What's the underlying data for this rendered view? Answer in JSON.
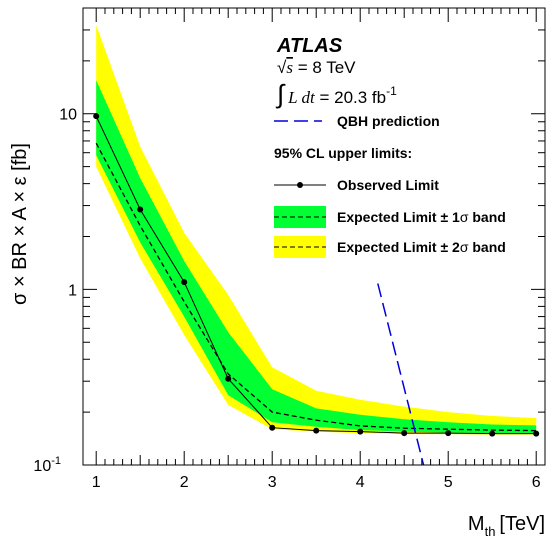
{
  "chart_data": {
    "type": "line",
    "title": "",
    "xlabel": "M",
    "xlabel_sub": "th",
    "xlabel_unit": "[TeV]",
    "ylabel": "σ × BR × A × ε  [fb]",
    "xlim": [
      0.85,
      6.1
    ],
    "ylim": [
      0.1,
      40
    ],
    "yscale": "log",
    "xticks": [
      1,
      2,
      3,
      4,
      5,
      6
    ],
    "yticks": [
      {
        "value": 0.1,
        "label": "10",
        "sup": "-1"
      },
      {
        "value": 1,
        "label": "1",
        "sup": ""
      },
      {
        "value": 10,
        "label": "10",
        "sup": ""
      }
    ],
    "x": [
      1.0,
      1.5,
      2.0,
      2.5,
      3.0,
      3.5,
      4.0,
      4.5,
      5.0,
      5.5,
      6.0
    ],
    "series": [
      {
        "name": "Observed Limit",
        "style": "solid-marker",
        "color": "#000000",
        "values": [
          9.7,
          2.85,
          1.1,
          0.31,
          0.163,
          0.157,
          0.155,
          0.152,
          0.152,
          0.151,
          0.151
        ]
      },
      {
        "name": "Expected Limit ± 1σ band",
        "style": "dashed",
        "color": "#000000",
        "values": [
          6.8,
          2.3,
          0.85,
          0.33,
          0.2,
          0.18,
          0.167,
          0.162,
          0.16,
          0.158,
          0.157
        ],
        "band_low": [
          5.8,
          1.85,
          0.7,
          0.25,
          0.175,
          0.165,
          0.158,
          0.155,
          0.153,
          0.152,
          0.152
        ],
        "band_high": [
          15.5,
          4.3,
          1.45,
          0.57,
          0.27,
          0.21,
          0.193,
          0.182,
          0.175,
          0.17,
          0.168
        ],
        "band_color": "#00ff33"
      },
      {
        "name": "Expected Limit ± 2σ band",
        "style": "dashed",
        "color": "#000000",
        "band_low": [
          5.0,
          1.5,
          0.55,
          0.22,
          0.16,
          0.155,
          0.152,
          0.15,
          0.15,
          0.149,
          0.149
        ],
        "band_high": [
          32.0,
          6.5,
          2.1,
          0.93,
          0.36,
          0.265,
          0.235,
          0.215,
          0.2,
          0.19,
          0.185
        ],
        "band_color": "#ffff00"
      },
      {
        "name": "QBH prediction",
        "style": "long-dash",
        "color": "#0000dd",
        "x": [
          4.2,
          4.72
        ],
        "values": [
          1.08,
          0.1
        ]
      }
    ],
    "legend": {
      "experiment": "ATLAS",
      "energy_sqrt": "√",
      "energy_s": "s",
      "energy_value": " = 8 TeV",
      "lumi_integral": "∫",
      "lumi_L": "L dt",
      "lumi_value": " = 20.3 fb",
      "lumi_sup": "-1",
      "qbh": "QBH prediction",
      "limits_header": "95% CL upper limits:",
      "observed": "Observed Limit",
      "expected1_prefix": "Expected Limit",
      "expected1_pm": " ± 1",
      "expected1_sigma": "σ",
      "expected1_suffix": " band",
      "expected2_prefix": "Expected Limit",
      "expected2_pm": " ± 2",
      "expected2_sigma": "σ",
      "expected2_suffix": " band"
    },
    "grid": false,
    "legend_placement": "top-right",
    "colors": {
      "band1": "#00ff33",
      "band2": "#ffff00",
      "qbh": "#0000dd"
    }
  }
}
